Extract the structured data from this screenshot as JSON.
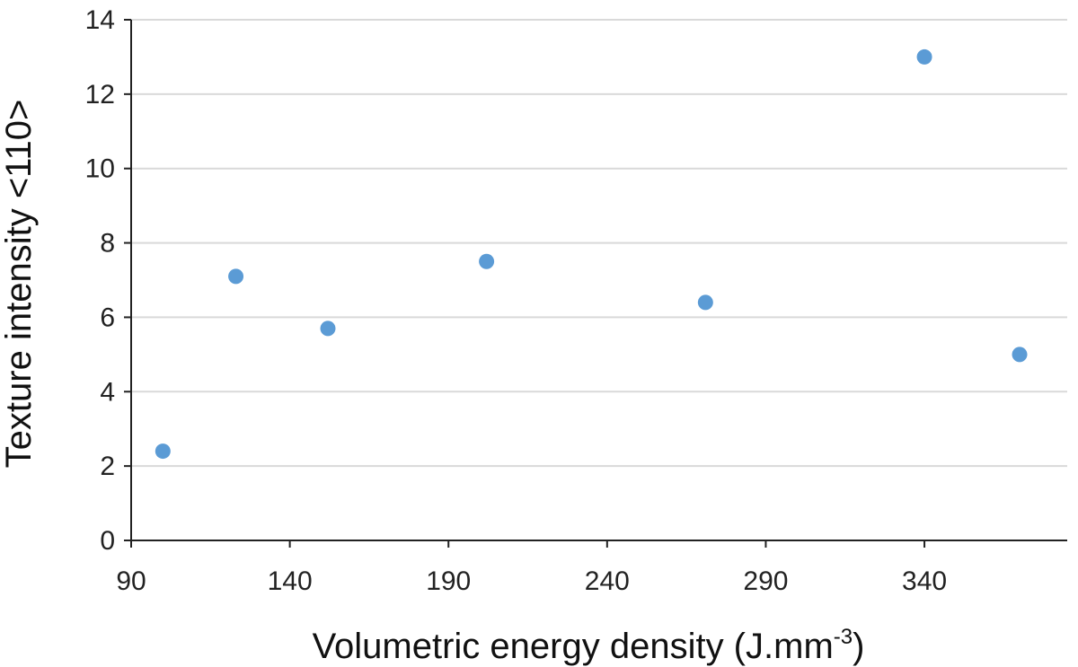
{
  "chart_data": {
    "type": "scatter",
    "title": "",
    "xlabel": "Volumetric energy density (J.mm",
    "xlabel_superscript": "-3",
    "xlabel_suffix": ")",
    "ylabel": "Texture intensity <110>",
    "xlim": [
      90,
      385
    ],
    "ylim": [
      0,
      14
    ],
    "xticks": [
      90,
      140,
      190,
      240,
      290,
      340
    ],
    "yticks": [
      0,
      2,
      4,
      6,
      8,
      10,
      12,
      14
    ],
    "grid": "horizontal",
    "series": [
      {
        "name": "Texture intensity",
        "color": "#5b9bd5",
        "points": [
          {
            "x": 100,
            "y": 2.4
          },
          {
            "x": 123,
            "y": 7.1
          },
          {
            "x": 152,
            "y": 5.7
          },
          {
            "x": 202,
            "y": 7.5
          },
          {
            "x": 271,
            "y": 6.4
          },
          {
            "x": 340,
            "y": 13.0
          },
          {
            "x": 370,
            "y": 5.0
          }
        ]
      }
    ]
  }
}
